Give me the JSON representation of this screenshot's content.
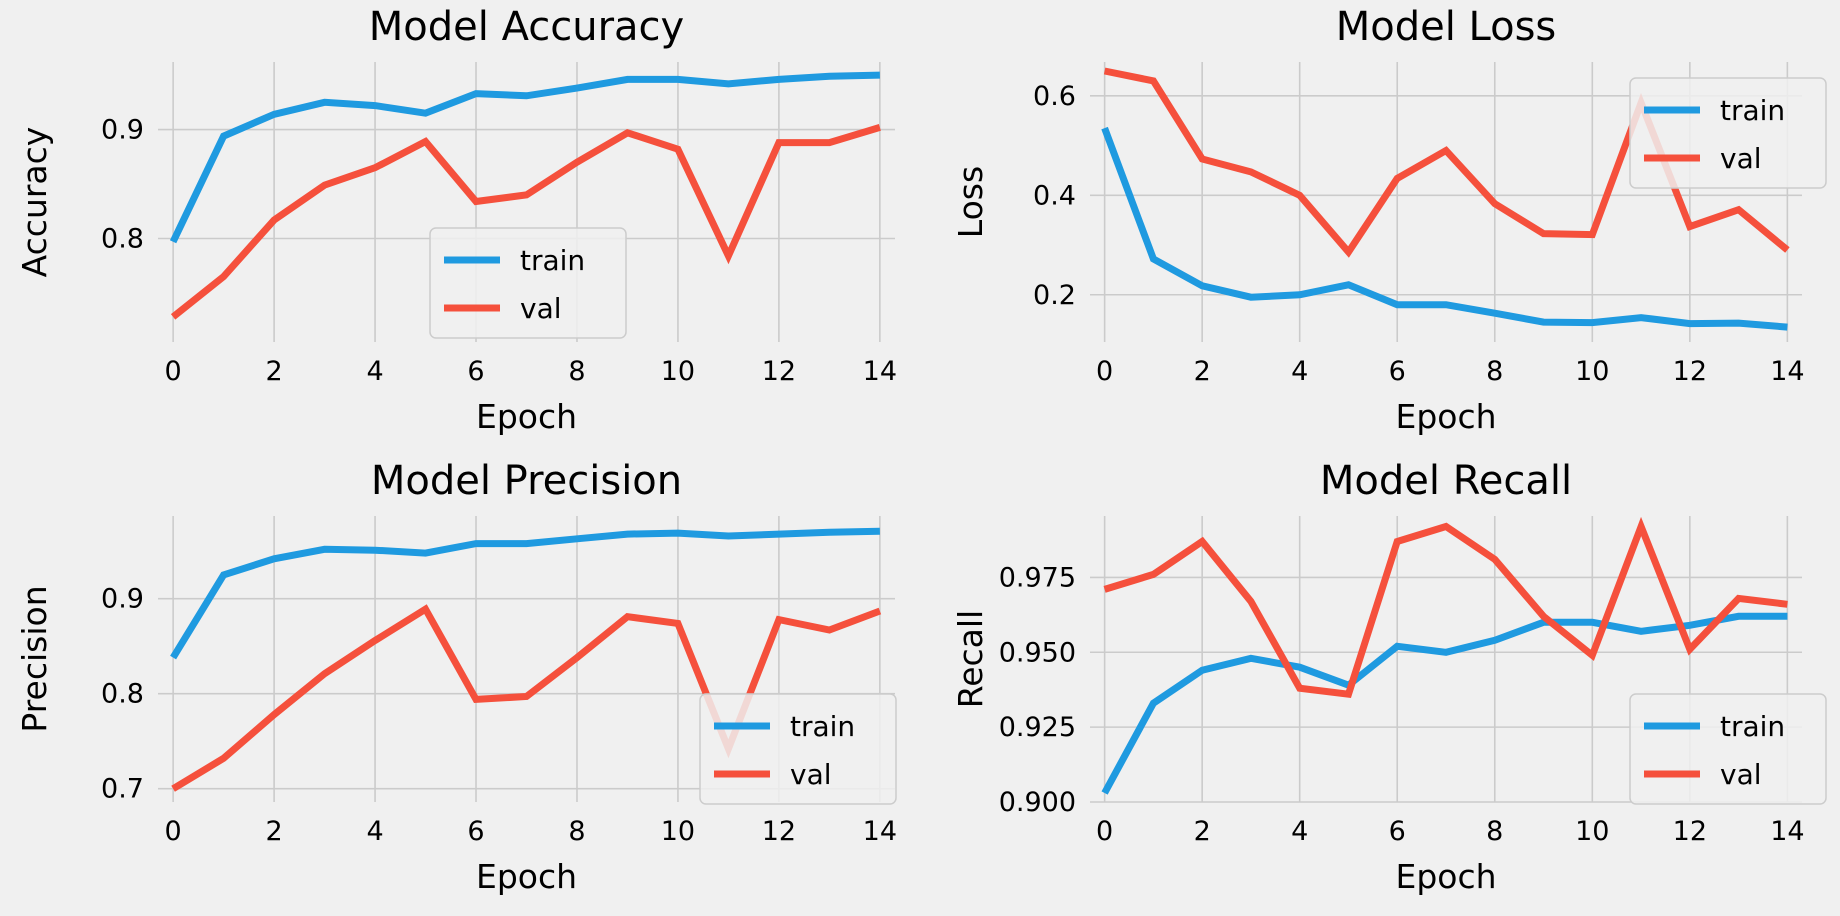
{
  "figure": {
    "background": "#f0f0f0",
    "colors": {
      "train": "#1f9ae0",
      "val": "#f5503c",
      "grid": "#cbcbcb"
    }
  },
  "chart_data": [
    {
      "type": "line",
      "title": "Model Accuracy",
      "xlabel": "Epoch",
      "ylabel": "Accuracy",
      "x": [
        0,
        1,
        2,
        3,
        4,
        5,
        6,
        7,
        8,
        9,
        10,
        11,
        12,
        13,
        14
      ],
      "xlim": [
        -0.3,
        14.3
      ],
      "ylim": [
        0.705,
        0.962
      ],
      "xticks": [
        0,
        2,
        4,
        6,
        8,
        10,
        12,
        14
      ],
      "xtick_labels": [
        "0",
        "2",
        "4",
        "6",
        "8",
        "10",
        "12",
        "14"
      ],
      "yticks": [
        0.8,
        0.9
      ],
      "ytick_labels": [
        "0.8",
        "0.9"
      ],
      "legend": "lower-center",
      "grid": true,
      "series": [
        {
          "name": "train",
          "values": [
            0.797,
            0.894,
            0.914,
            0.925,
            0.922,
            0.915,
            0.933,
            0.931,
            0.938,
            0.946,
            0.946,
            0.942,
            0.946,
            0.949,
            0.95
          ]
        },
        {
          "name": "val",
          "values": [
            0.728,
            0.765,
            0.817,
            0.849,
            0.865,
            0.889,
            0.834,
            0.84,
            0.87,
            0.897,
            0.882,
            0.784,
            0.888,
            0.888,
            0.902
          ]
        }
      ]
    },
    {
      "type": "line",
      "title": "Model Loss",
      "xlabel": "Epoch",
      "ylabel": "Loss",
      "x": [
        0,
        1,
        2,
        3,
        4,
        5,
        6,
        7,
        8,
        9,
        10,
        11,
        12,
        13,
        14
      ],
      "xlim": [
        -0.3,
        14.3
      ],
      "ylim": [
        0.105,
        0.668
      ],
      "xticks": [
        0,
        2,
        4,
        6,
        8,
        10,
        12,
        14
      ],
      "xtick_labels": [
        "0",
        "2",
        "4",
        "6",
        "8",
        "10",
        "12",
        "14"
      ],
      "yticks": [
        0.2,
        0.4,
        0.6
      ],
      "ytick_labels": [
        "0.2",
        "0.4",
        "0.6"
      ],
      "legend": "upper-right",
      "grid": true,
      "series": [
        {
          "name": "train",
          "values": [
            0.535,
            0.272,
            0.218,
            0.195,
            0.2,
            0.22,
            0.18,
            0.18,
            0.163,
            0.145,
            0.144,
            0.154,
            0.142,
            0.143,
            0.135
          ]
        },
        {
          "name": "val",
          "values": [
            0.65,
            0.63,
            0.473,
            0.447,
            0.4,
            0.286,
            0.434,
            0.49,
            0.383,
            0.323,
            0.321,
            0.586,
            0.337,
            0.371,
            0.29
          ]
        }
      ]
    },
    {
      "type": "line",
      "title": "Model Precision",
      "xlabel": "Epoch",
      "ylabel": "Precision",
      "x": [
        0,
        1,
        2,
        3,
        4,
        5,
        6,
        7,
        8,
        9,
        10,
        11,
        12,
        13,
        14
      ],
      "xlim": [
        -0.3,
        14.3
      ],
      "ylim": [
        0.686,
        0.987
      ],
      "xticks": [
        0,
        2,
        4,
        6,
        8,
        10,
        12,
        14
      ],
      "xtick_labels": [
        "0",
        "2",
        "4",
        "6",
        "8",
        "10",
        "12",
        "14"
      ],
      "yticks": [
        0.7,
        0.8,
        0.9
      ],
      "ytick_labels": [
        "0.7",
        "0.8",
        "0.9"
      ],
      "legend": "lower-right",
      "grid": true,
      "series": [
        {
          "name": "train",
          "values": [
            0.838,
            0.925,
            0.942,
            0.952,
            0.951,
            0.948,
            0.958,
            0.958,
            0.963,
            0.968,
            0.969,
            0.966,
            0.968,
            0.97,
            0.971
          ]
        },
        {
          "name": "val",
          "values": [
            0.7,
            0.732,
            0.778,
            0.821,
            0.856,
            0.889,
            0.794,
            0.797,
            0.838,
            0.881,
            0.874,
            0.742,
            0.878,
            0.867,
            0.887
          ]
        }
      ]
    },
    {
      "type": "line",
      "title": "Model Recall",
      "xlabel": "Epoch",
      "ylabel": "Recall",
      "x": [
        0,
        1,
        2,
        3,
        4,
        5,
        6,
        7,
        8,
        9,
        10,
        11,
        12,
        13,
        14
      ],
      "xlim": [
        -0.3,
        14.3
      ],
      "ylim": [
        0.9,
        0.9955
      ],
      "xticks": [
        0,
        2,
        4,
        6,
        8,
        10,
        12,
        14
      ],
      "xtick_labels": [
        "0",
        "2",
        "4",
        "6",
        "8",
        "10",
        "12",
        "14"
      ],
      "yticks": [
        0.9,
        0.925,
        0.95,
        0.975
      ],
      "ytick_labels": [
        "0.900",
        "0.925",
        "0.950",
        "0.975"
      ],
      "legend": "lower-right",
      "grid": true,
      "series": [
        {
          "name": "train",
          "values": [
            0.903,
            0.933,
            0.944,
            0.948,
            0.945,
            0.939,
            0.952,
            0.95,
            0.954,
            0.96,
            0.96,
            0.957,
            0.959,
            0.962,
            0.962
          ]
        },
        {
          "name": "val",
          "values": [
            0.971,
            0.976,
            0.987,
            0.967,
            0.938,
            0.936,
            0.987,
            0.992,
            0.981,
            0.962,
            0.949,
            0.992,
            0.951,
            0.968,
            0.966
          ]
        }
      ]
    }
  ]
}
